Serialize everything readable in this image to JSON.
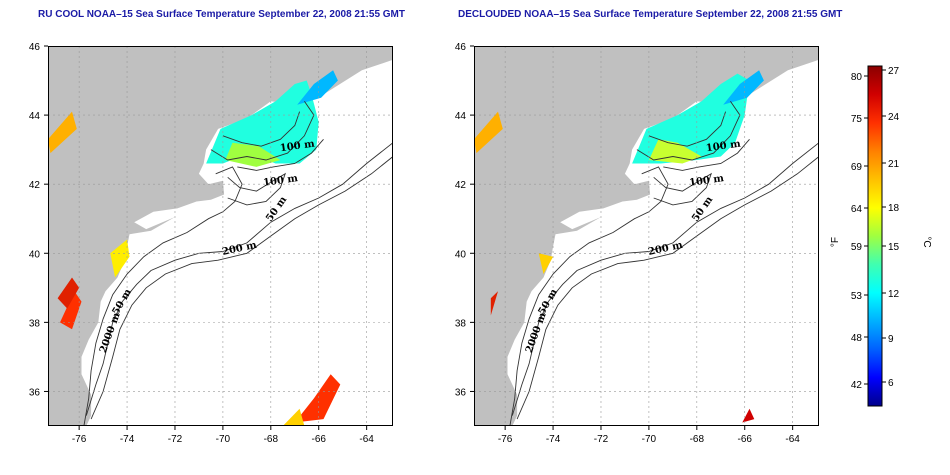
{
  "panels": [
    {
      "id": "left",
      "title": "RU COOL NOAA–15 Sea Surface Temperature September 22, 2008 21:55 GMT",
      "variant": "cloudy"
    },
    {
      "id": "right",
      "title": "DECLOUDED NOAA–15 Sea Surface Temperature September 22, 2008 21:55 GMT",
      "variant": "declouded"
    }
  ],
  "map": {
    "lon_ticks": [
      -76,
      -74,
      -72,
      -70,
      -68,
      -66,
      -64
    ],
    "lat_ticks": [
      36,
      38,
      40,
      42,
      44,
      46
    ],
    "lon_range": [
      -77.3,
      -62.9
    ],
    "lat_range": [
      35.0,
      46.0
    ],
    "land_color": "#c0c0c0",
    "contour_labels": [
      "100 m",
      "100 m",
      "50 m",
      "200 m",
      "50 m",
      "2000 m"
    ]
  },
  "colorbar": {
    "f_label": "°F",
    "c_label": "°C",
    "f_ticks": [
      "80",
      "75",
      "69",
      "64",
      "59",
      "53",
      "48",
      "42"
    ],
    "c_ticks": [
      "27",
      "24",
      "21",
      "18",
      "15",
      "12",
      "9",
      "6"
    ],
    "colors": [
      "#00008b",
      "#0000ff",
      "#0060ff",
      "#00b0ff",
      "#00ffff",
      "#40ffb0",
      "#a0ff40",
      "#ffff00",
      "#ffc000",
      "#ff8000",
      "#ff3000",
      "#d00000",
      "#8b0000"
    ]
  }
}
